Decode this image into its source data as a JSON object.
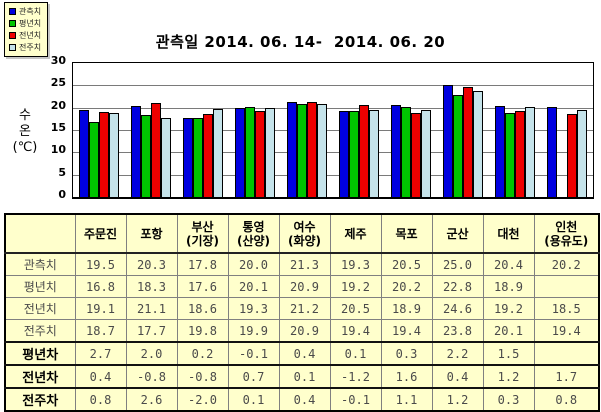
{
  "colors": {
    "page_bg": "#FFFFFF",
    "panel_bg": "#FFFFCC",
    "grid": "#7A7A7A",
    "axis": "#000000",
    "series_blue": "#0000E0",
    "series_green": "#00C400",
    "series_red": "#EE0000",
    "series_cyan": "#C5E3EA"
  },
  "y_axis": {
    "label_lines": [
      "수",
      "온",
      "(℃)"
    ],
    "ticks": [
      30,
      25,
      20,
      15,
      10,
      5,
      0
    ],
    "max": 30
  },
  "chart_data": {
    "type": "bar",
    "title": "관측일 2014. 06. 14-  2014. 06. 20",
    "xlabel": "",
    "ylabel": "수온(℃)",
    "ylim": [
      0,
      30
    ],
    "grid": true,
    "legend_position": "top-left",
    "categories": [
      "주문진",
      "포항",
      "부산(기장)",
      "통영(산양)",
      "여수(화양)",
      "제주",
      "목포",
      "군산",
      "대천",
      "인천(용유도)"
    ],
    "series": [
      {
        "name": "관측치",
        "color": "#0000E0",
        "values": [
          19.5,
          20.3,
          17.8,
          20.0,
          21.3,
          19.3,
          20.5,
          25.0,
          20.4,
          20.2
        ]
      },
      {
        "name": "평년치",
        "color": "#00C400",
        "values": [
          16.8,
          18.3,
          17.6,
          20.1,
          20.9,
          19.2,
          20.2,
          22.8,
          18.9,
          null
        ]
      },
      {
        "name": "전년치",
        "color": "#EE0000",
        "values": [
          19.1,
          21.1,
          18.6,
          19.3,
          21.2,
          20.5,
          18.9,
          24.6,
          19.2,
          18.5
        ]
      },
      {
        "name": "전주치",
        "color": "#C5E3EA",
        "values": [
          18.7,
          17.7,
          19.8,
          19.9,
          20.9,
          19.4,
          19.4,
          23.8,
          20.1,
          19.4
        ]
      }
    ]
  },
  "table": {
    "corner_label": "",
    "columns": [
      "주문진",
      "포항",
      "부산\n(기장)",
      "통영\n(산양)",
      "여수\n(화양)",
      "제주",
      "목포",
      "군산",
      "대천",
      "인천\n(용유도)"
    ],
    "diff_rows": [
      {
        "label": "평년차",
        "values": [
          2.7,
          2.0,
          0.2,
          -0.1,
          0.4,
          0.1,
          0.3,
          2.2,
          1.5,
          null
        ]
      },
      {
        "label": "전년차",
        "values": [
          0.4,
          -0.8,
          -0.8,
          0.7,
          0.1,
          -1.2,
          1.6,
          0.4,
          1.2,
          1.7
        ]
      },
      {
        "label": "전주차",
        "values": [
          0.8,
          2.6,
          -2.0,
          0.1,
          0.4,
          -0.1,
          1.1,
          1.2,
          0.3,
          0.8
        ]
      }
    ]
  }
}
